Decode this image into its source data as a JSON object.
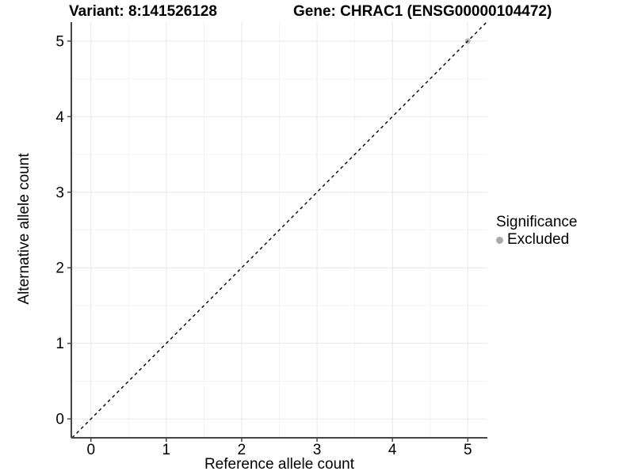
{
  "chart_data": {
    "type": "scatter",
    "title_left": "Variant: 8:141526128",
    "title_right": "Gene: CHRAC1 (ENSG00000104472)",
    "xlabel": "Reference allele count",
    "ylabel": "Alternative allele count",
    "xlim": [
      -0.26,
      5.26
    ],
    "ylim": [
      -0.25,
      5.25
    ],
    "x_ticks": [
      0,
      1,
      2,
      3,
      4,
      5
    ],
    "y_ticks": [
      0,
      1,
      2,
      3,
      4,
      5
    ],
    "grid": {
      "major": true,
      "minor": true,
      "minor_step": 0.5
    },
    "series": [
      {
        "name": "Excluded",
        "color": "#b8b8b8",
        "points": [
          {
            "x": 5,
            "y": 5
          }
        ]
      }
    ],
    "reference_line": {
      "slope": 1,
      "intercept": 0,
      "style": "dashed",
      "color": "#000000"
    },
    "legend": {
      "position": "right",
      "title": "Significance",
      "items": [
        {
          "label": "Excluded",
          "color": "#a9a9a9",
          "marker": "circle"
        }
      ]
    },
    "style_colors": {
      "panel_background": "#ffffff",
      "grid_major": "#e6e6e6",
      "grid_minor": "#f3f3f3",
      "axis_line": "#464646",
      "tick_text": "#000000"
    }
  }
}
